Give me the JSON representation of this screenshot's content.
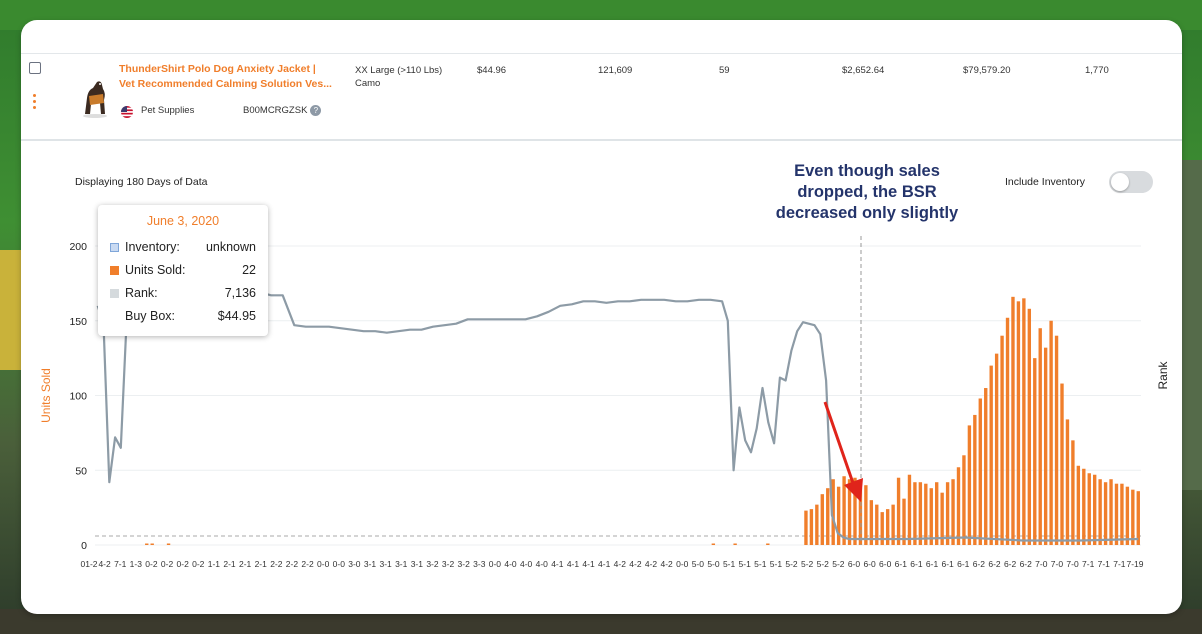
{
  "product": {
    "title_line1": "ThunderShirt Polo Dog Anxiety Jacket |",
    "title_line2": "Vet Recommended Calming Solution Ves...",
    "category": "Pet Supplies",
    "asin": "B00MCRGZSK",
    "variant_line1": "XX Large (>110 Lbs)",
    "variant_line2": "Camo",
    "price": "$44.96",
    "col_rank": "121,609",
    "col_units": "59",
    "col_revenue": "$2,652.64",
    "col_revenue_total": "$79,579.20",
    "col_last": "1,770",
    "qmark": "?"
  },
  "header": {
    "displaying": "Displaying 180 Days of Data",
    "include_inventory": "Include Inventory"
  },
  "annotation": {
    "line1": "Even though sales",
    "line2": "dropped, the BSR",
    "line3": "decreased only slightly"
  },
  "tooltip": {
    "date": "June 3, 2020",
    "inventory_label": "Inventory:",
    "inventory_value": "unknown",
    "units_label": "Units Sold:",
    "units_value": "22",
    "rank_label": "Rank:",
    "rank_value": "7,136",
    "buybox_label": "Buy Box:",
    "buybox_value": "$44.95"
  },
  "colors": {
    "bar": "#f07e2b",
    "rank_line": "#8d9ba6",
    "annotation_text": "#24346b",
    "arrow": "#e0241b",
    "inventory_swatch": "#c9daf2"
  },
  "chart_data": {
    "type": "bar",
    "ylabel": "Units Sold",
    "y2label": "Rank",
    "ylim": [
      0,
      200
    ],
    "yticks": [
      0,
      50,
      100,
      150,
      200
    ],
    "grid": true,
    "xticks": [
      "01-2",
      "4-2",
      "7-1",
      "1-3",
      "0-2",
      "0-2",
      "0-2",
      "0-2",
      "1-1",
      "2-1",
      "2-1",
      "2-1",
      "2-2",
      "2-2",
      "2-2",
      "0-0",
      "0-0",
      "3-0",
      "3-1",
      "3-1",
      "3-1",
      "3-1",
      "3-2",
      "3-2",
      "3-2",
      "3-3",
      "0-0",
      "4-0",
      "4-0",
      "4-0",
      "4-1",
      "4-1",
      "4-1",
      "4-1",
      "4-2",
      "4-2",
      "4-2",
      "4-2",
      "0-0",
      "5-0",
      "5-0",
      "5-1",
      "5-1",
      "5-1",
      "5-1",
      "5-2",
      "5-2",
      "5-2",
      "5-2",
      "6-0",
      "6-0",
      "6-0",
      "6-1",
      "6-1",
      "6-1",
      "6-1",
      "6-1",
      "6-2",
      "6-2",
      "6-2",
      "6-2",
      "7-0",
      "7-0",
      "7-0",
      "7-1",
      "7-1",
      "7-1",
      "7-19"
    ],
    "bars": {
      "name": "Units Sold",
      "start_index": 0,
      "values_early_blips": [
        {
          "x": 9,
          "y": 1
        },
        {
          "x": 10,
          "y": 1
        },
        {
          "x": 13,
          "y": 1
        },
        {
          "x": 113,
          "y": 1
        },
        {
          "x": 117,
          "y": 1
        },
        {
          "x": 123,
          "y": 1
        }
      ],
      "x_start": 130,
      "values": [
        23,
        24,
        27,
        34,
        38,
        44,
        39,
        46,
        44,
        45,
        38,
        40,
        30,
        27,
        22,
        24,
        27,
        45,
        31,
        47,
        42,
        42,
        41,
        38,
        42,
        35,
        42,
        44,
        52,
        60,
        80,
        87,
        98,
        105,
        120,
        128,
        140,
        152,
        166,
        163,
        165,
        158,
        125,
        145,
        132,
        150,
        140,
        108,
        84,
        70,
        53,
        51,
        48,
        47,
        44,
        42,
        44,
        41,
        41,
        39,
        37,
        36
      ]
    },
    "rank_series": {
      "name": "Rank",
      "x": [
        0,
        1,
        2,
        3,
        4,
        5,
        6,
        7,
        8,
        9,
        10,
        12,
        14,
        16,
        20,
        24,
        26,
        28,
        30,
        32,
        34,
        36,
        38,
        40,
        42,
        44,
        46,
        48,
        50,
        52,
        54,
        56,
        58,
        60,
        62,
        64,
        66,
        68,
        70,
        72,
        74,
        76,
        78,
        80,
        82,
        84,
        86,
        88,
        90,
        92,
        94,
        96,
        98,
        100,
        102,
        104,
        106,
        108,
        109,
        110,
        111,
        112,
        113,
        114,
        115,
        116,
        117,
        118,
        119,
        120,
        121,
        122,
        124,
        125,
        126,
        127,
        128,
        129,
        130,
        140,
        150,
        160,
        170,
        180
      ],
      "y": [
        160,
        148,
        42,
        72,
        65,
        150,
        152,
        155,
        157,
        158,
        142,
        143,
        141,
        142,
        166,
        167,
        169,
        169,
        167,
        167,
        147,
        146,
        146,
        146,
        145,
        144,
        143,
        143,
        142,
        143,
        144,
        144,
        146,
        147,
        148,
        151,
        151,
        151,
        151,
        151,
        151,
        153,
        156,
        160,
        161,
        163,
        163,
        162,
        163,
        163,
        164,
        164,
        164,
        163,
        163,
        164,
        164,
        163,
        150,
        50,
        92,
        70,
        62,
        78,
        105,
        82,
        68,
        112,
        110,
        130,
        143,
        149,
        147,
        141,
        110,
        20,
        8,
        5,
        4,
        4,
        5,
        3,
        3,
        4
      ]
    },
    "total_points": 192,
    "annotation": "Even though sales dropped, the BSR decreased only slightly",
    "legend": "tooltip"
  }
}
